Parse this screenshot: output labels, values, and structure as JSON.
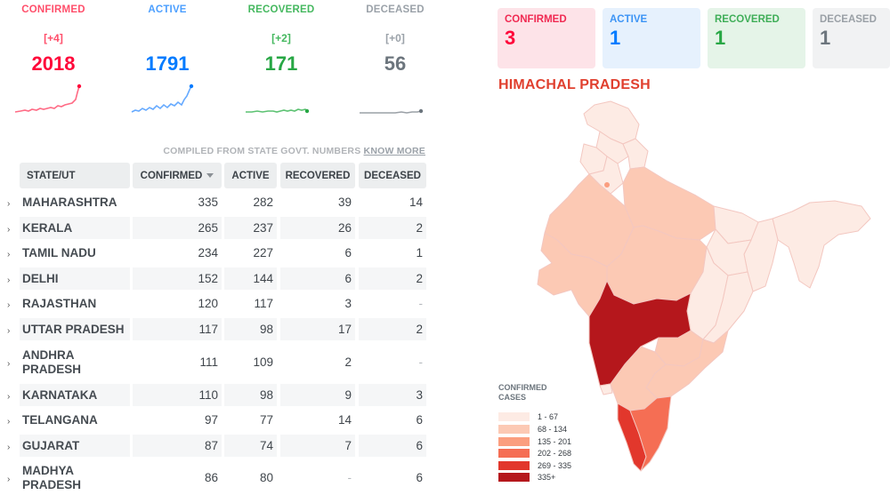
{
  "counters": [
    {
      "label": "CONFIRMED",
      "delta": "[+4]",
      "value": "2018",
      "icon": "sparkline-confirmed-icon",
      "color": "#ff073a"
    },
    {
      "label": "ACTIVE",
      "delta": "",
      "value": "1791",
      "icon": "sparkline-active-icon",
      "color": "#007bff"
    },
    {
      "label": "RECOVERED",
      "delta": "[+2]",
      "value": "171",
      "icon": "sparkline-recovered-icon",
      "color": "#28a745"
    },
    {
      "label": "DECEASED",
      "delta": "[+0]",
      "value": "56",
      "icon": "sparkline-deceased-icon",
      "color": "#6c757d"
    }
  ],
  "compiled": {
    "text": "COMPILED FROM STATE GOVT. NUMBERS",
    "link": "KNOW MORE"
  },
  "table": {
    "headers": {
      "state": "STATE/UT",
      "confirmed": "CONFIRMED",
      "active": "ACTIVE",
      "recovered": "RECOVERED",
      "deceased": "DECEASED"
    },
    "sort_icon": "sort-desc-icon",
    "expand_icon": "chevron-right-icon",
    "rows": [
      {
        "state": "MAHARASHTRA",
        "confirmed": "335",
        "active": "282",
        "recovered": "39",
        "deceased": "14"
      },
      {
        "state": "KERALA",
        "confirmed": "265",
        "active": "237",
        "recovered": "26",
        "deceased": "2"
      },
      {
        "state": "TAMIL NADU",
        "confirmed": "234",
        "active": "227",
        "recovered": "6",
        "deceased": "1"
      },
      {
        "state": "DELHI",
        "confirmed": "152",
        "active": "144",
        "recovered": "6",
        "deceased": "2"
      },
      {
        "state": "RAJASTHAN",
        "confirmed": "120",
        "active": "117",
        "recovered": "3",
        "deceased": "-"
      },
      {
        "state": "UTTAR PRADESH",
        "confirmed": "117",
        "active": "98",
        "recovered": "17",
        "deceased": "2"
      },
      {
        "state": "ANDHRA PRADESH",
        "confirmed": "111",
        "active": "109",
        "recovered": "2",
        "deceased": "-"
      },
      {
        "state": "KARNATAKA",
        "confirmed": "110",
        "active": "98",
        "recovered": "9",
        "deceased": "3"
      },
      {
        "state": "TELANGANA",
        "confirmed": "97",
        "active": "77",
        "recovered": "14",
        "deceased": "6"
      },
      {
        "state": "GUJARAT",
        "confirmed": "87",
        "active": "74",
        "recovered": "7",
        "deceased": "6"
      },
      {
        "state": "MADHYA PRADESH",
        "confirmed": "86",
        "active": "80",
        "recovered": "-",
        "deceased": "6"
      }
    ]
  },
  "region": {
    "name": "HIMACHAL PRADESH",
    "cards": [
      {
        "label": "CONFIRMED",
        "value": "3"
      },
      {
        "label": "ACTIVE",
        "value": "1"
      },
      {
        "label": "RECOVERED",
        "value": "1"
      },
      {
        "label": "DECEASED",
        "value": "1"
      }
    ]
  },
  "map_legend": {
    "title": "CONFIRMED CASES",
    "items": [
      {
        "label": "1 - 67",
        "color": "#fdebe4"
      },
      {
        "label": "68 - 134",
        "color": "#fcc9b4"
      },
      {
        "label": "135 - 201",
        "color": "#fb9e7f"
      },
      {
        "label": "202 - 268",
        "color": "#f56e54"
      },
      {
        "label": "269 - 335",
        "color": "#e2372c"
      },
      {
        "label": "335+",
        "color": "#b5171c"
      }
    ]
  }
}
